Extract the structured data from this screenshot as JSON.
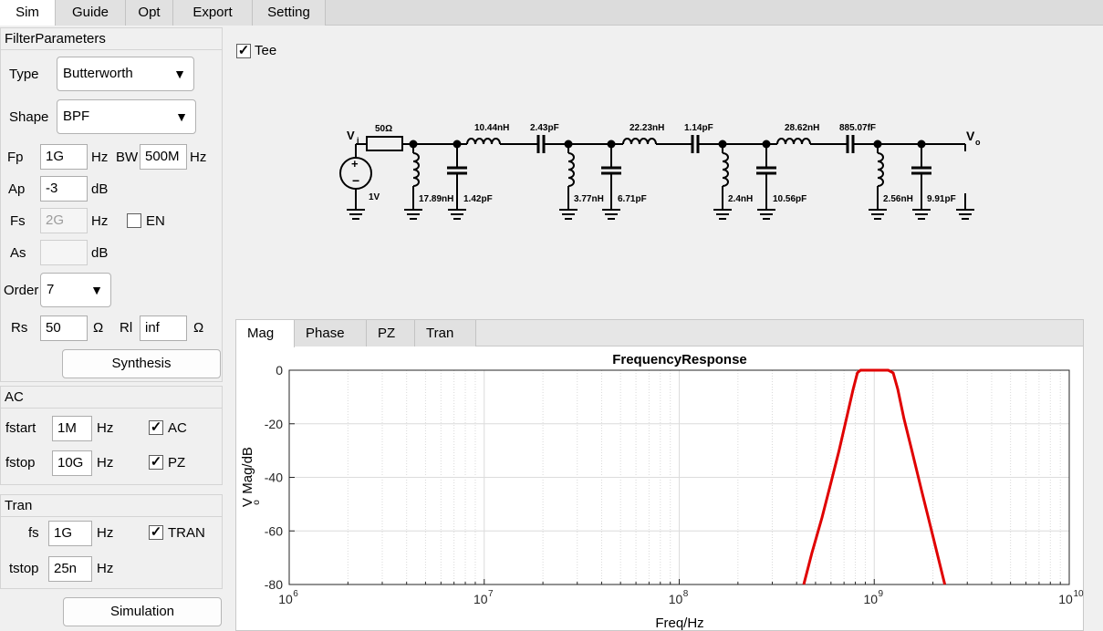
{
  "top_tabs": [
    "Sim",
    "Guide",
    "Opt",
    "Export",
    "Setting"
  ],
  "filter": {
    "title": "FilterParameters",
    "type_label": "Type",
    "type_value": "Butterworth",
    "shape_label": "Shape",
    "shape_value": "BPF",
    "fp_label": "Fp",
    "fp_value": "1G",
    "fp_unit": "Hz",
    "bw_label": "BW",
    "bw_value": "500M",
    "bw_unit": "Hz",
    "ap_label": "Ap",
    "ap_value": "-3",
    "ap_unit": "dB",
    "fs_label": "Fs",
    "fs_value": "2G",
    "fs_unit": "Hz",
    "en_label": "EN",
    "en_checked": false,
    "as_label": "As",
    "as_value": "",
    "as_unit": "dB",
    "order_label": "Order",
    "order_value": "7",
    "rs_label": "Rs",
    "rs_value": "50",
    "rs_unit": "Ω",
    "rl_label": "Rl",
    "rl_value": "inf",
    "rl_unit": "Ω",
    "synthesis_button": "Synthesis"
  },
  "ac": {
    "title": "AC",
    "fstart_label": "fstart",
    "fstart_value": "1M",
    "fstart_unit": "Hz",
    "fstop_label": "fstop",
    "fstop_value": "10G",
    "fstop_unit": "Hz",
    "ac_label": "AC",
    "ac_checked": true,
    "pz_label": "PZ",
    "pz_checked": true
  },
  "tran": {
    "title": "Tran",
    "fs_label": "fs",
    "fs_value": "1G",
    "fs_unit": "Hz",
    "tstop_label": "tstop",
    "tstop_value": "25n",
    "tstop_unit": "Hz",
    "tran_label": "TRAN",
    "tran_checked": true,
    "simulation_button": "Simulation"
  },
  "schematic": {
    "tee_label": "Tee",
    "tee_checked": true,
    "source_label": "V",
    "source_sub": "i",
    "source_value": "1V",
    "rs_value": "50Ω",
    "series_inductors": [
      "10.44nH",
      "22.23nH",
      "28.62nH"
    ],
    "series_caps": [
      "2.43pF",
      "1.14pF",
      "885.07fF"
    ],
    "shunt_inductors": [
      "17.89nH",
      "3.77nH",
      "2.4nH",
      "2.56nH"
    ],
    "shunt_caps": [
      "1.42pF",
      "6.71pF",
      "10.56pF",
      "9.91pF"
    ],
    "output_label": "V",
    "output_sub": "o"
  },
  "plot_tabs": [
    "Mag",
    "Phase",
    "PZ",
    "Tran"
  ],
  "chart_data": {
    "type": "line",
    "title": "FrequencyResponse",
    "xlabel": "Freq/Hz",
    "ylabel": "V  Mag/dB",
    "ylabel_sub": "o",
    "xscale": "log",
    "xlim": [
      1000000,
      10000000000
    ],
    "ylim": [
      -80,
      0
    ],
    "xticks": [
      1000000,
      10000000,
      100000000,
      1000000000,
      10000000000
    ],
    "xtick_base": "10",
    "xtick_exponents": [
      "6",
      "7",
      "8",
      "9",
      "10"
    ],
    "yticks": [
      0,
      -20,
      -40,
      -60,
      -80
    ],
    "ytick_labels": [
      "0",
      "-20",
      "-40",
      "-60",
      "-80"
    ],
    "grid": true,
    "line_color": "#e00000",
    "series": [
      {
        "x": [
          435000000,
          480000000,
          540000000,
          600000000,
          660000000,
          720000000,
          780000000,
          820000000,
          850000000,
          900000000,
          1000000000,
          1100000000,
          1180000000,
          1250000000,
          1320000000,
          1420000000,
          1560000000,
          1750000000,
          2000000000,
          2300000000
        ],
        "y": [
          -80,
          -68,
          -55,
          -42,
          -30,
          -18,
          -7,
          -1,
          0,
          0,
          0,
          0,
          0,
          -1,
          -7,
          -18,
          -30,
          -45,
          -62,
          -80
        ]
      }
    ]
  }
}
